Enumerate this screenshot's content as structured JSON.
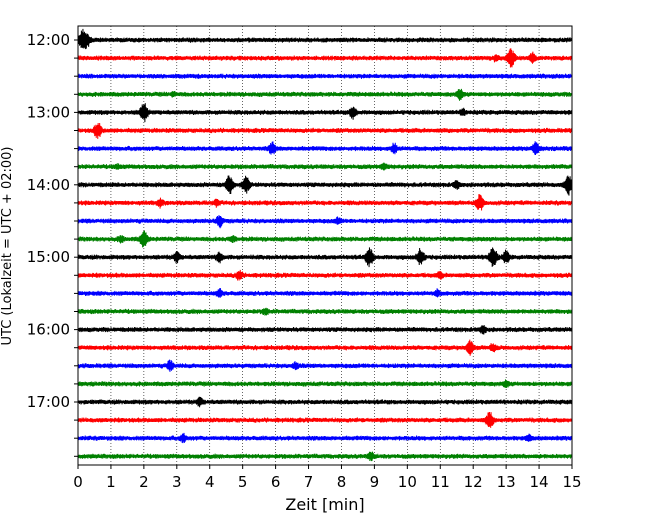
{
  "chart_data": {
    "type": "line",
    "title": "",
    "xlabel": "Zeit  [min]",
    "ylabel": "UTC (Lokalzeit = UTC + 02:00)",
    "xlim": [
      0,
      15
    ],
    "xticks": [
      0,
      1,
      2,
      3,
      4,
      5,
      6,
      7,
      8,
      9,
      10,
      11,
      12,
      13,
      14,
      15
    ],
    "ytick_labels": [
      "12:00",
      "13:00",
      "14:00",
      "15:00",
      "16:00",
      "17:00"
    ],
    "grid": "vertical dotted at each minute",
    "colors": [
      "#000000",
      "#ff0000",
      "#0000ff",
      "#008000"
    ],
    "trace_interval_min": 15,
    "series": [
      {
        "start": "12:00",
        "color": "#000000",
        "events": [
          {
            "t": 0.15,
            "a": 1.0
          },
          {
            "t": 0.3,
            "a": 0.5
          }
        ]
      },
      {
        "start": "12:15",
        "color": "#ff0000",
        "events": [
          {
            "t": 13.15,
            "a": 0.9
          },
          {
            "t": 13.8,
            "a": 0.5
          },
          {
            "t": 12.7,
            "a": 0.3
          }
        ]
      },
      {
        "start": "12:30",
        "color": "#0000ff",
        "events": []
      },
      {
        "start": "12:45",
        "color": "#008000",
        "events": [
          {
            "t": 11.6,
            "a": 0.5
          },
          {
            "t": 2.9,
            "a": 0.2
          }
        ]
      },
      {
        "start": "13:00",
        "color": "#000000",
        "events": [
          {
            "t": 2.0,
            "a": 0.9
          },
          {
            "t": 8.35,
            "a": 0.6
          },
          {
            "t": 11.7,
            "a": 0.3
          }
        ]
      },
      {
        "start": "13:15",
        "color": "#ff0000",
        "events": [
          {
            "t": 0.6,
            "a": 0.8
          }
        ]
      },
      {
        "start": "13:30",
        "color": "#0000ff",
        "events": [
          {
            "t": 5.9,
            "a": 0.6
          },
          {
            "t": 9.6,
            "a": 0.5
          },
          {
            "t": 13.9,
            "a": 0.6
          }
        ]
      },
      {
        "start": "13:45",
        "color": "#008000",
        "events": [
          {
            "t": 9.3,
            "a": 0.3
          },
          {
            "t": 1.2,
            "a": 0.2
          }
        ]
      },
      {
        "start": "14:00",
        "color": "#000000",
        "events": [
          {
            "t": 4.6,
            "a": 0.9
          },
          {
            "t": 5.1,
            "a": 0.8
          },
          {
            "t": 11.5,
            "a": 0.4
          },
          {
            "t": 14.9,
            "a": 1.0
          }
        ]
      },
      {
        "start": "14:15",
        "color": "#ff0000",
        "events": [
          {
            "t": 2.5,
            "a": 0.4
          },
          {
            "t": 12.2,
            "a": 0.8
          },
          {
            "t": 4.2,
            "a": 0.3
          }
        ]
      },
      {
        "start": "14:30",
        "color": "#0000ff",
        "events": [
          {
            "t": 4.3,
            "a": 0.6
          },
          {
            "t": 7.9,
            "a": 0.3
          }
        ]
      },
      {
        "start": "14:45",
        "color": "#008000",
        "events": [
          {
            "t": 2.0,
            "a": 0.8
          },
          {
            "t": 1.3,
            "a": 0.3
          },
          {
            "t": 4.7,
            "a": 0.3
          }
        ]
      },
      {
        "start": "15:00",
        "color": "#000000",
        "events": [
          {
            "t": 3.0,
            "a": 0.5
          },
          {
            "t": 4.3,
            "a": 0.5
          },
          {
            "t": 8.85,
            "a": 0.9
          },
          {
            "t": 10.4,
            "a": 0.8
          },
          {
            "t": 12.6,
            "a": 1.0
          },
          {
            "t": 13.0,
            "a": 0.6
          }
        ]
      },
      {
        "start": "15:15",
        "color": "#ff0000",
        "events": [
          {
            "t": 4.9,
            "a": 0.5
          },
          {
            "t": 11.0,
            "a": 0.3
          }
        ]
      },
      {
        "start": "15:30",
        "color": "#0000ff",
        "events": [
          {
            "t": 4.3,
            "a": 0.4
          },
          {
            "t": 10.9,
            "a": 0.3
          }
        ]
      },
      {
        "start": "15:45",
        "color": "#008000",
        "events": [
          {
            "t": 5.7,
            "a": 0.3
          }
        ]
      },
      {
        "start": "16:00",
        "color": "#000000",
        "events": [
          {
            "t": 12.3,
            "a": 0.4
          }
        ]
      },
      {
        "start": "16:15",
        "color": "#ff0000",
        "events": [
          {
            "t": 11.9,
            "a": 0.7
          },
          {
            "t": 12.6,
            "a": 0.4
          }
        ]
      },
      {
        "start": "16:30",
        "color": "#0000ff",
        "events": [
          {
            "t": 2.8,
            "a": 0.5
          },
          {
            "t": 6.6,
            "a": 0.3
          }
        ]
      },
      {
        "start": "16:45",
        "color": "#008000",
        "events": [
          {
            "t": 13.0,
            "a": 0.3
          }
        ]
      },
      {
        "start": "17:00",
        "color": "#000000",
        "events": [
          {
            "t": 3.7,
            "a": 0.4
          }
        ]
      },
      {
        "start": "17:15",
        "color": "#ff0000",
        "events": [
          {
            "t": 12.5,
            "a": 0.8
          }
        ]
      },
      {
        "start": "17:30",
        "color": "#0000ff",
        "events": [
          {
            "t": 3.2,
            "a": 0.4
          },
          {
            "t": 13.7,
            "a": 0.3
          }
        ]
      },
      {
        "start": "17:45",
        "color": "#008000",
        "events": [
          {
            "t": 8.9,
            "a": 0.4
          }
        ]
      }
    ]
  }
}
